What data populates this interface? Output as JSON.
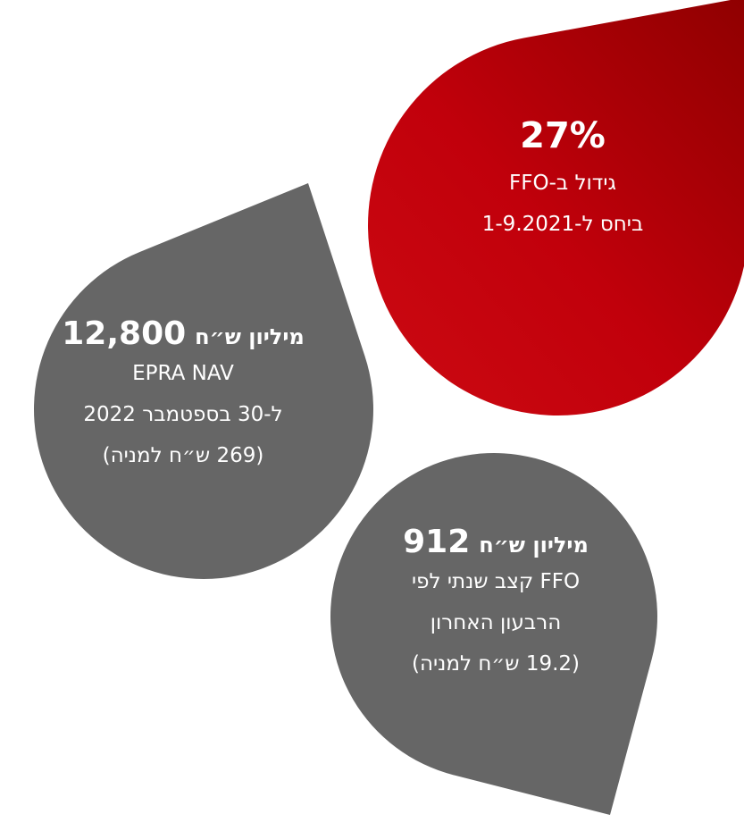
{
  "drops": [
    {
      "headline": "27%",
      "lines": [
        "גידול ב-FFO",
        "ביחס ל-1-9.2021"
      ]
    },
    {
      "headline": "12,800",
      "unit": "מיליון ש״ח",
      "lines": [
        "EPRA NAV",
        "ל-30 בספטמבר 2022",
        "(269 ש״ח למניה)"
      ]
    },
    {
      "headline": "912",
      "unit": "מיליון ש״ח",
      "lines": [
        "FFO קצב שנתי לפי",
        "הרבעון האחרון",
        "(19.2 ש״ח למניה)"
      ]
    }
  ]
}
